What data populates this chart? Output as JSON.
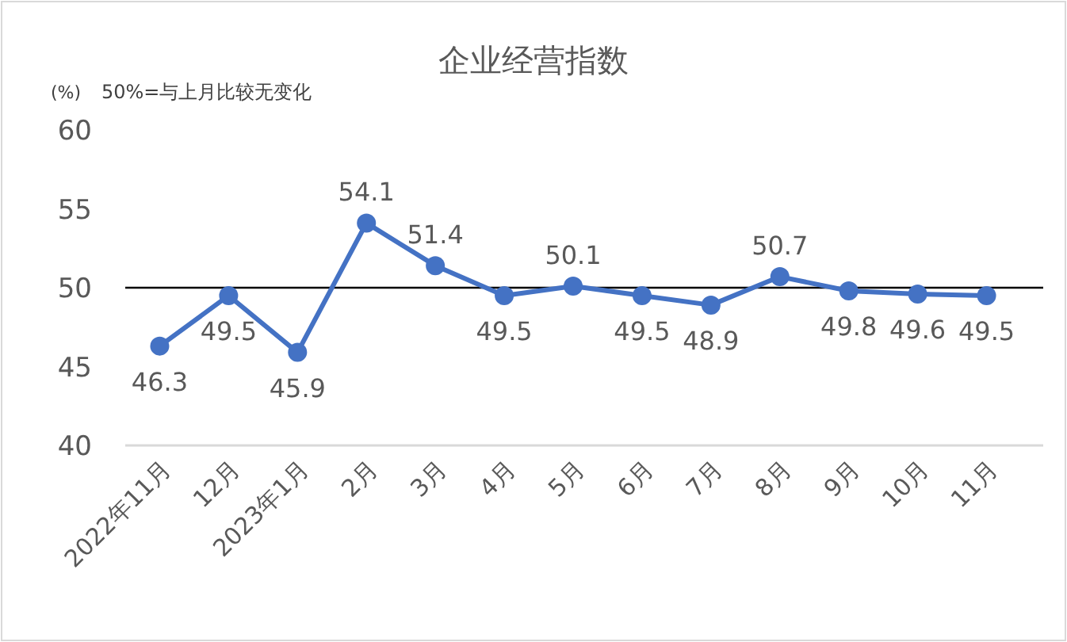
{
  "chart_data": {
    "type": "line",
    "title": "企业经营指数",
    "ylabel": "(%)",
    "annotations": [
      "50%=与上月比较无变化"
    ],
    "categories": [
      "2022年11月",
      "12月",
      "2023年1月",
      "2月",
      "3月",
      "4月",
      "5月",
      "6月",
      "7月",
      "8月",
      "9月",
      "10月",
      "11月"
    ],
    "series": [
      {
        "color": "#4472c4",
        "values": [
          46.3,
          49.5,
          45.9,
          54.1,
          51.4,
          49.5,
          50.1,
          49.5,
          48.9,
          50.7,
          49.8,
          49.6,
          49.5
        ]
      }
    ],
    "ylim": [
      40,
      60
    ],
    "yticks": [
      40,
      45,
      50,
      55,
      60
    ],
    "ref_lines": [
      {
        "axis": "y",
        "value": 50,
        "color": "#000000"
      }
    ],
    "data_labels": true,
    "marker": "circle",
    "grid": false
  }
}
